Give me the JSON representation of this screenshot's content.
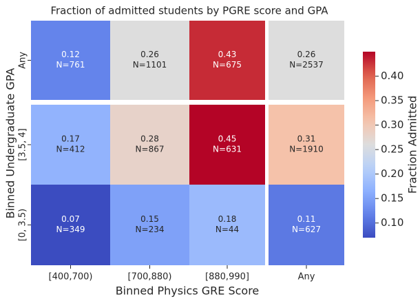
{
  "chart_data": {
    "type": "heatmap",
    "title": "Fraction of admitted students by PGRE score and GPA",
    "x_label": "Binned Physics GRE Score",
    "y_label": "Binned Undergraduate GPA",
    "x_categories": [
      "[400,700)",
      "[700,880)",
      "[880,990]",
      "Any"
    ],
    "y_categories": [
      "Any",
      "[3.5, 4]",
      "[0, 3.5)"
    ],
    "values": [
      [
        0.12,
        0.26,
        0.43,
        0.26
      ],
      [
        0.17,
        0.28,
        0.45,
        0.31
      ],
      [
        0.07,
        0.15,
        0.18,
        0.11
      ]
    ],
    "count_labels": [
      [
        "N=761",
        "N=1101",
        "N=675",
        "N=2537"
      ],
      [
        "N=412",
        "N=867",
        "N=631",
        "N=1910"
      ],
      [
        "N=349",
        "N=234",
        "N=44",
        "N=627"
      ]
    ],
    "colormap": "coolwarm",
    "colorbar_label": "Fraction Admitted",
    "clim": [
      0.07,
      0.45
    ],
    "colorbar_ticks": [
      {
        "value": 0.1,
        "label": "0.10"
      },
      0.15,
      {
        "value": 0.2,
        "label": "0.20"
      },
      0.25,
      {
        "value": 0.3,
        "label": "0.30"
      },
      0.35,
      {
        "value": 0.4,
        "label": "0.40"
      }
    ]
  }
}
